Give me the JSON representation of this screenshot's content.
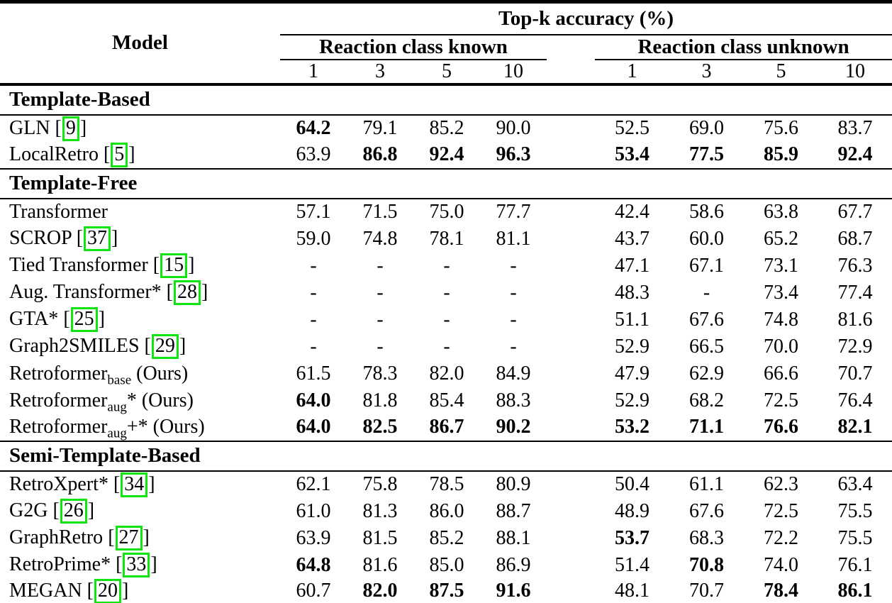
{
  "table": {
    "title": "Top-k accuracy (%)",
    "model_header": "Model",
    "group_headers": [
      "Reaction class known",
      "Reaction class unknown"
    ],
    "k_values": [
      "1",
      "3",
      "5",
      "10",
      "1",
      "3",
      "5",
      "10"
    ],
    "citation_brackets": [
      " [",
      "]"
    ],
    "citation_box_color": "#12e412",
    "text_color": "#000000",
    "background_color": "#ffffff",
    "sections": [
      {
        "label": "Template-Based",
        "rows": [
          {
            "model": "GLN",
            "cite": "9",
            "values": [
              "64.2",
              "79.1",
              "85.2",
              "90.0",
              "52.5",
              "69.0",
              "75.6",
              "83.7"
            ],
            "bold": [
              1,
              0,
              0,
              0,
              0,
              0,
              0,
              0
            ]
          },
          {
            "model": "LocalRetro",
            "cite": "5",
            "values": [
              "63.9",
              "86.8",
              "92.4",
              "96.3",
              "53.4",
              "77.5",
              "85.9",
              "92.4"
            ],
            "bold": [
              0,
              1,
              1,
              1,
              1,
              1,
              1,
              1
            ]
          }
        ]
      },
      {
        "label": "Template-Free",
        "rows": [
          {
            "model": "Transformer",
            "values": [
              "57.1",
              "71.5",
              "75.0",
              "77.7",
              "42.4",
              "58.6",
              "63.8",
              "67.7"
            ],
            "bold": [
              0,
              0,
              0,
              0,
              0,
              0,
              0,
              0
            ]
          },
          {
            "model": "SCROP",
            "cite": "37",
            "values": [
              "59.0",
              "74.8",
              "78.1",
              "81.1",
              "43.7",
              "60.0",
              "65.2",
              "68.7"
            ],
            "bold": [
              0,
              0,
              0,
              0,
              0,
              0,
              0,
              0
            ]
          },
          {
            "model": "Tied Transformer",
            "cite": "15",
            "values": [
              "-",
              "-",
              "-",
              "-",
              "47.1",
              "67.1",
              "73.1",
              "76.3"
            ],
            "bold": [
              0,
              0,
              0,
              0,
              0,
              0,
              0,
              0
            ]
          },
          {
            "model": "Aug. Transformer*",
            "cite": "28",
            "values": [
              "-",
              "-",
              "-",
              "-",
              "48.3",
              "-",
              "73.4",
              "77.4"
            ],
            "bold": [
              0,
              0,
              0,
              0,
              0,
              0,
              0,
              0
            ]
          },
          {
            "model": "GTA*",
            "cite": "25",
            "values": [
              "-",
              "-",
              "-",
              "-",
              "51.1",
              "67.6",
              "74.8",
              "81.6"
            ],
            "bold": [
              0,
              0,
              0,
              0,
              0,
              0,
              0,
              0
            ]
          },
          {
            "model": "Graph2SMILES",
            "cite": "29",
            "values": [
              "-",
              "-",
              "-",
              "-",
              "52.9",
              "66.5",
              "70.0",
              "72.9"
            ],
            "bold": [
              0,
              0,
              0,
              0,
              0,
              0,
              0,
              0
            ]
          },
          {
            "model": "Retroformer",
            "sub": "base",
            "tail": " (Ours)",
            "values": [
              "61.5",
              "78.3",
              "82.0",
              "84.9",
              "47.9",
              "62.9",
              "66.6",
              "70.7"
            ],
            "bold": [
              0,
              0,
              0,
              0,
              0,
              0,
              0,
              0
            ]
          },
          {
            "model": "Retroformer",
            "sub": "aug",
            "after_sub": "*",
            "tail": " (Ours)",
            "values": [
              "64.0",
              "81.8",
              "85.4",
              "88.3",
              "52.9",
              "68.2",
              "72.5",
              "76.4"
            ],
            "bold": [
              1,
              0,
              0,
              0,
              0,
              0,
              0,
              0
            ]
          },
          {
            "model": "Retroformer",
            "sub": "aug",
            "after_sub": "+*",
            "tail": " (Ours)",
            "values": [
              "64.0",
              "82.5",
              "86.7",
              "90.2",
              "53.2",
              "71.1",
              "76.6",
              "82.1"
            ],
            "bold": [
              1,
              1,
              1,
              1,
              1,
              1,
              1,
              1
            ]
          }
        ]
      },
      {
        "label": "Semi-Template-Based",
        "rows": [
          {
            "model": "RetroXpert*",
            "cite": "34",
            "values": [
              "62.1",
              "75.8",
              "78.5",
              "80.9",
              "50.4",
              "61.1",
              "62.3",
              "63.4"
            ],
            "bold": [
              0,
              0,
              0,
              0,
              0,
              0,
              0,
              0
            ]
          },
          {
            "model": "G2G",
            "cite": "26",
            "values": [
              "61.0",
              "81.3",
              "86.0",
              "88.7",
              "48.9",
              "67.6",
              "72.5",
              "75.5"
            ],
            "bold": [
              0,
              0,
              0,
              0,
              0,
              0,
              0,
              0
            ]
          },
          {
            "model": "GraphRetro",
            "cite": "27",
            "values": [
              "63.9",
              "81.5",
              "85.2",
              "88.1",
              "53.7",
              "68.3",
              "72.2",
              "75.5"
            ],
            "bold": [
              0,
              0,
              0,
              0,
              1,
              0,
              0,
              0
            ]
          },
          {
            "model": "RetroPrime*",
            "cite": "33",
            "values": [
              "64.8",
              "81.6",
              "85.0",
              "86.9",
              "51.4",
              "70.8",
              "74.0",
              "76.1"
            ],
            "bold": [
              1,
              0,
              0,
              0,
              0,
              1,
              0,
              0
            ]
          },
          {
            "model": "MEGAN",
            "cite": "20",
            "values": [
              "60.7",
              "82.0",
              "87.5",
              "91.6",
              "48.1",
              "70.7",
              "78.4",
              "86.1"
            ],
            "bold": [
              0,
              1,
              1,
              1,
              0,
              0,
              1,
              1
            ]
          }
        ]
      }
    ]
  }
}
